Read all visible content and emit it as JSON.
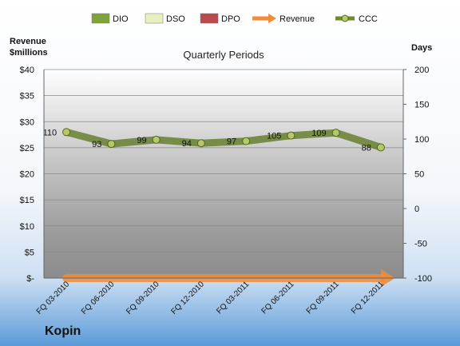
{
  "chart_data": {
    "type": "bar",
    "title": "Quarterly Periods",
    "company": "Kopin",
    "left_axis_title": "Revenue\n$millions",
    "right_axis_title": "Days",
    "categories": [
      "FQ 03-2010",
      "FQ 06-2010",
      "FQ 09-2010",
      "FQ 12-2010",
      "FQ 03-2011",
      "FQ 06-2011",
      "FQ 09-2011",
      "FQ 12-2011"
    ],
    "left_ticks": [
      "$-",
      "$5",
      "$10",
      "$15",
      "$20",
      "$25",
      "$30",
      "$35",
      "$40"
    ],
    "left_range": [
      0,
      40
    ],
    "right_ticks": [
      "-100",
      "-50",
      "0",
      "50",
      "100",
      "150",
      "200"
    ],
    "right_range": [
      -100,
      200
    ],
    "legend": [
      {
        "name": "DIO",
        "color": "#7fa33a"
      },
      {
        "name": "DSO",
        "color": "#e8f0bf"
      },
      {
        "name": "DPO",
        "color": "#b94a4e"
      },
      {
        "name": "Revenue",
        "color": "#f08c3a"
      },
      {
        "name": "CCC",
        "color": "#6e8a2a"
      }
    ],
    "series": [
      {
        "name": "DIO",
        "axis": "days",
        "values": [
          0,
          0,
          0,
          0,
          0,
          0,
          0,
          0
        ]
      },
      {
        "name": "DSO",
        "axis": "days",
        "values": [
          0,
          0,
          0,
          0,
          0,
          0,
          0,
          0
        ]
      },
      {
        "name": "DPO",
        "axis": "days",
        "values": [
          0,
          0,
          0,
          0,
          0,
          0,
          0,
          0
        ]
      },
      {
        "name": "Revenue",
        "axis": "revenue",
        "values": [
          0,
          0,
          0,
          0,
          0,
          0,
          0,
          0
        ]
      },
      {
        "name": "CCC",
        "axis": "days",
        "values": [
          110,
          93,
          99,
          94,
          97,
          105,
          109,
          88
        ]
      }
    ],
    "ccc_labels": [
      "110",
      "93",
      "99",
      "94",
      "97",
      "105",
      "109",
      "88"
    ]
  }
}
